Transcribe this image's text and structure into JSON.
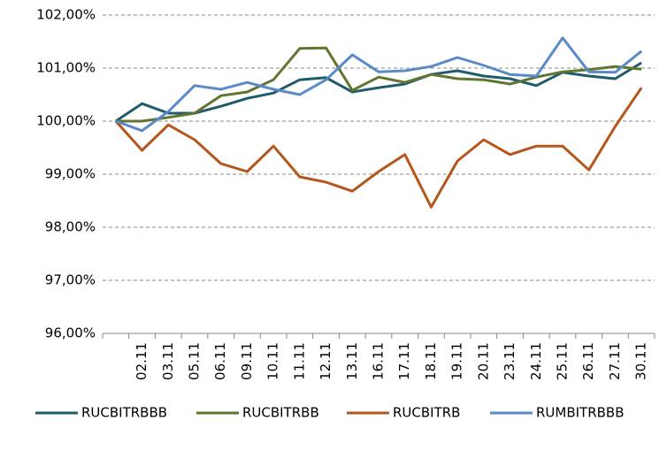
{
  "chart_data": {
    "type": "line",
    "categories": [
      null,
      "02.11",
      "03.11",
      "05.11",
      "06.11",
      "09.11",
      "10.11",
      "11.11",
      "12.11",
      "13.11",
      "16.11",
      "17.11",
      "18.11",
      "19.11",
      "20.11",
      "23.11",
      "24.11",
      "25.11",
      "26.11",
      "27.11",
      "30.11"
    ],
    "series": [
      {
        "name": "RUCBITRBBB",
        "color": "#1f5c6b",
        "values": [
          100,
          100.33,
          100.15,
          100.15,
          100.28,
          100.43,
          100.53,
          100.78,
          100.82,
          100.55,
          100.63,
          100.7,
          100.88,
          100.95,
          100.85,
          100.8,
          100.67,
          100.92,
          100.85,
          100.8,
          101.1
        ]
      },
      {
        "name": "RUCBITRBB",
        "color": "#5f7530",
        "values": [
          100,
          100,
          100.07,
          100.15,
          100.48,
          100.55,
          100.78,
          101.37,
          101.38,
          100.58,
          100.83,
          100.73,
          100.88,
          100.8,
          100.78,
          100.7,
          100.83,
          100.93,
          100.97,
          101.03,
          100.98
        ]
      },
      {
        "name": "RUCBITRB",
        "color": "#b5561c",
        "values": [
          100,
          99.45,
          99.93,
          99.65,
          99.2,
          99.05,
          99.53,
          98.95,
          98.85,
          98.68,
          99.05,
          99.37,
          98.38,
          99.25,
          99.65,
          99.37,
          99.53,
          99.53,
          99.08,
          99.9,
          100.63
        ]
      },
      {
        "name": "RUMBITRBBB",
        "color": "#5b8ac8",
        "values": [
          100,
          99.82,
          100.18,
          100.67,
          100.6,
          100.73,
          100.6,
          100.5,
          100.78,
          101.25,
          100.93,
          100.95,
          101.03,
          101.2,
          101.05,
          100.88,
          100.85,
          101.57,
          100.93,
          100.92,
          101.32
        ]
      }
    ],
    "ylim": [
      96,
      102
    ],
    "yticks": [
      {
        "value": 96,
        "label": "96,00%"
      },
      {
        "value": 97,
        "label": "97,00%"
      },
      {
        "value": 98,
        "label": "98,00%"
      },
      {
        "value": 99,
        "label": "99,00%"
      },
      {
        "value": 100,
        "label": "100,00%"
      },
      {
        "value": 101,
        "label": "101,00%"
      },
      {
        "value": 102,
        "label": "102,00%"
      }
    ],
    "grid": true
  }
}
